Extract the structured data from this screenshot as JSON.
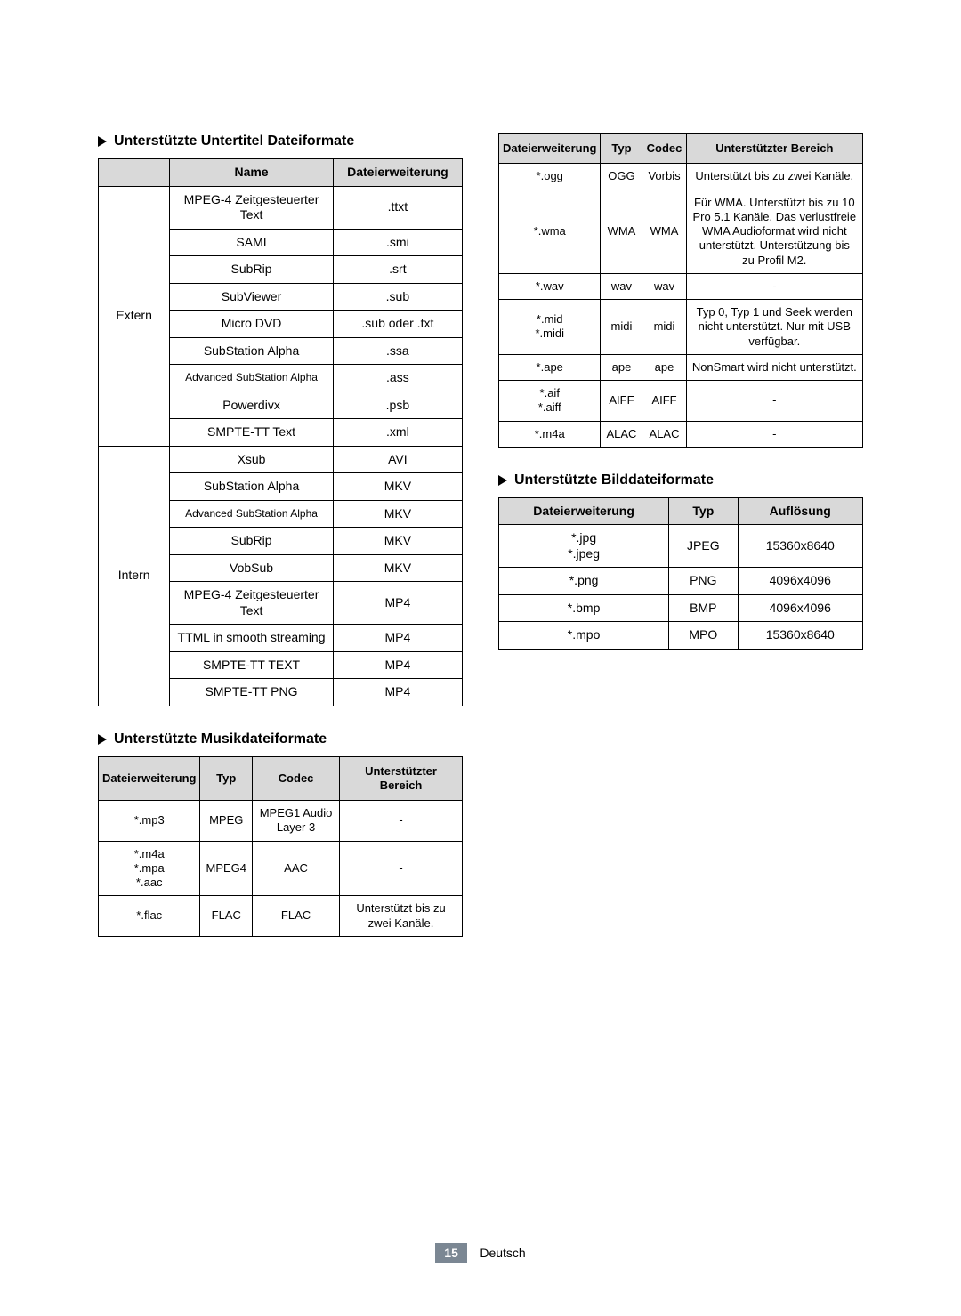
{
  "headings": {
    "subtitle": "Unterstützte Untertitel Dateiformate",
    "music": "Unterstützte Musikdateiformate",
    "image": "Unterstützte Bilddateiformate"
  },
  "subtitleTable": {
    "headers": {
      "cat": "",
      "name": "Name",
      "ext": "Dateierweiterung"
    },
    "categories": {
      "extern": "Extern",
      "intern": "Intern"
    },
    "externRows": [
      {
        "name": "MPEG-4 Zeitgesteuerter Text",
        "ext": ".ttxt"
      },
      {
        "name": "SAMI",
        "ext": ".smi"
      },
      {
        "name": "SubRip",
        "ext": ".srt"
      },
      {
        "name": "SubViewer",
        "ext": ".sub"
      },
      {
        "name": "Micro DVD",
        "ext": ".sub oder .txt"
      },
      {
        "name": "SubStation Alpha",
        "ext": ".ssa"
      },
      {
        "name": "Advanced SubStation Alpha",
        "ext": ".ass"
      },
      {
        "name": "Powerdivx",
        "ext": ".psb"
      },
      {
        "name": "SMPTE-TT Text",
        "ext": ".xml"
      }
    ],
    "internRows": [
      {
        "name": "Xsub",
        "ext": "AVI"
      },
      {
        "name": "SubStation Alpha",
        "ext": "MKV"
      },
      {
        "name": "Advanced SubStation Alpha",
        "ext": "MKV"
      },
      {
        "name": "SubRip",
        "ext": "MKV"
      },
      {
        "name": "VobSub",
        "ext": "MKV"
      },
      {
        "name": "MPEG-4 Zeitgesteuerter Text",
        "ext": "MP4"
      },
      {
        "name": "TTML in smooth streaming",
        "ext": "MP4"
      },
      {
        "name": "SMPTE-TT TEXT",
        "ext": "MP4"
      },
      {
        "name": "SMPTE-TT PNG",
        "ext": "MP4"
      }
    ]
  },
  "musicTable": {
    "headers": {
      "ext": "Dateierweiterung",
      "type": "Typ",
      "codec": "Codec",
      "range": "Unterstützter Bereich"
    },
    "rows": [
      {
        "ext": "*.mp3",
        "type": "MPEG",
        "codec": "MPEG1 Audio Layer 3",
        "range": "-"
      },
      {
        "ext": "*.m4a\n*.mpa\n*.aac",
        "type": "MPEG4",
        "codec": "AAC",
        "range": "-"
      },
      {
        "ext": "*.flac",
        "type": "FLAC",
        "codec": "FLAC",
        "range": "Unterstützt bis zu zwei Kanäle."
      },
      {
        "ext": "*.ogg",
        "type": "OGG",
        "codec": "Vorbis",
        "range": "Unterstützt bis zu zwei Kanäle."
      },
      {
        "ext": "*.wma",
        "type": "WMA",
        "codec": "WMA",
        "range": "Für WMA. Unterstützt bis zu 10 Pro 5.1 Kanäle. Das verlustfreie WMA Audioformat wird nicht unterstützt. Unterstützung bis zu Profil M2."
      },
      {
        "ext": "*.wav",
        "type": "wav",
        "codec": "wav",
        "range": "-"
      },
      {
        "ext": "*.mid\n*.midi",
        "type": "midi",
        "codec": "midi",
        "range": "Typ 0, Typ 1 und Seek werden nicht unterstützt. Nur mit USB verfügbar."
      },
      {
        "ext": "*.ape",
        "type": "ape",
        "codec": "ape",
        "range": "NonSmart wird nicht unterstützt."
      },
      {
        "ext": "*.aif\n*.aiff",
        "type": "AIFF",
        "codec": "AIFF",
        "range": "-"
      },
      {
        "ext": "*.m4a",
        "type": "ALAC",
        "codec": "ALAC",
        "range": "-"
      }
    ]
  },
  "imageTable": {
    "headers": {
      "ext": "Dateierweiterung",
      "type": "Typ",
      "res": "Auflösung"
    },
    "rows": [
      {
        "ext": "*.jpg\n*.jpeg",
        "type": "JPEG",
        "res": "15360x8640"
      },
      {
        "ext": "*.png",
        "type": "PNG",
        "res": "4096x4096"
      },
      {
        "ext": "*.bmp",
        "type": "BMP",
        "res": "4096x4096"
      },
      {
        "ext": "*.mpo",
        "type": "MPO",
        "res": "15360x8640"
      }
    ]
  },
  "footer": {
    "page": "15",
    "lang": "Deutsch"
  }
}
